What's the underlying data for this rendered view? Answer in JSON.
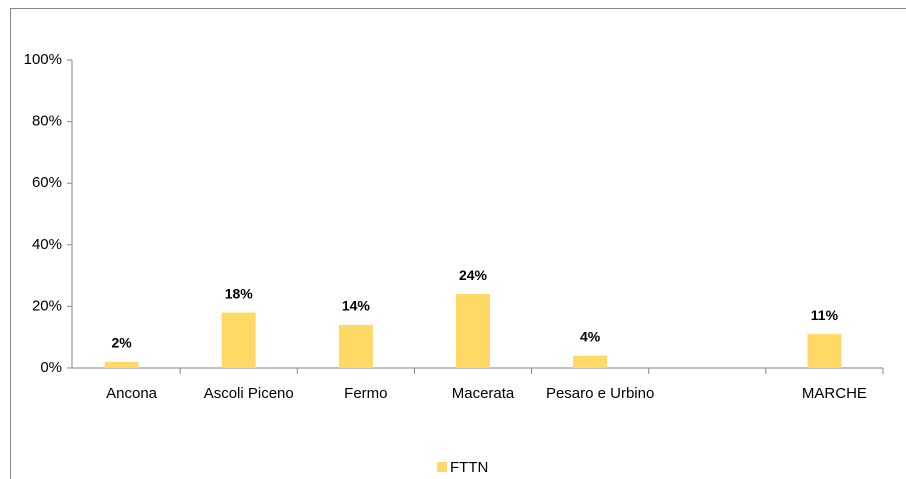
{
  "chart_data": {
    "type": "bar",
    "categories": [
      "Ancona",
      "Ascoli Piceno",
      "Fermo",
      "Macerata",
      "Pesaro e Urbino",
      null,
      "MARCHE"
    ],
    "series": [
      {
        "name": "FTTN",
        "color": "#ffd966",
        "values": [
          2,
          18,
          14,
          24,
          4,
          null,
          11
        ],
        "value_labels": [
          "2%",
          "18%",
          "14%",
          "24%",
          "4%",
          null,
          "11%"
        ]
      }
    ],
    "ylim": [
      0,
      100
    ],
    "yticks": [
      {
        "value": 0,
        "label": "0%"
      },
      {
        "value": 20,
        "label": "20%"
      },
      {
        "value": 40,
        "label": "40%"
      },
      {
        "value": 60,
        "label": "60%"
      },
      {
        "value": 80,
        "label": "80%"
      },
      {
        "value": 100,
        "label": "100%"
      }
    ],
    "legend": "bottom"
  }
}
